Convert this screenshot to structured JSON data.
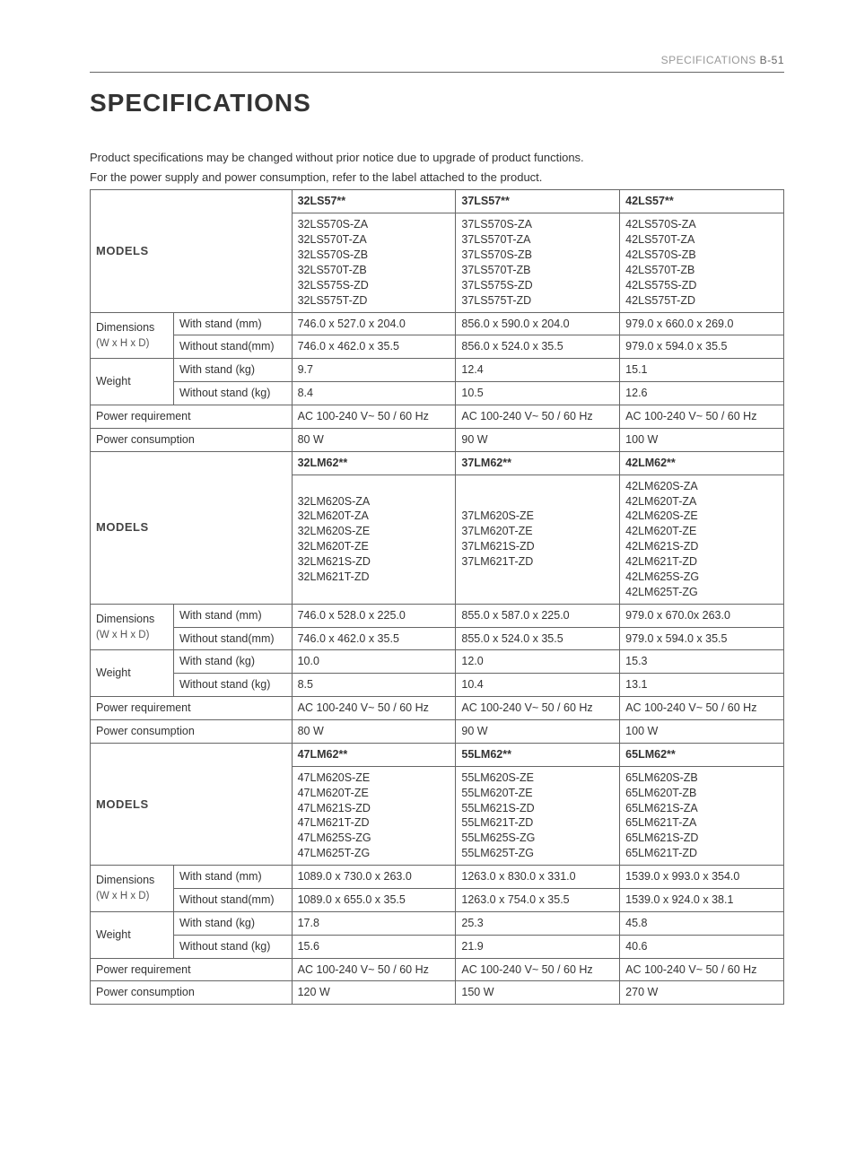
{
  "header": {
    "section": "SPECIFICATIONS",
    "page": "B-51"
  },
  "title": "SPECIFICATIONS",
  "intro": [
    "Product specifications may be changed without prior notice due to upgrade of product functions.",
    "For the power supply and power consumption, refer to the label attached to the product."
  ],
  "labels": {
    "models": "MODELS",
    "dimensions": "Dimensions",
    "dimSub": "(W x H x D)",
    "withStandMM": "With stand (mm)",
    "withoutStandMM": "Without stand(mm)",
    "weight": "Weight",
    "withStandKG": "With stand (kg)",
    "withoutStandKG": "Without stand (kg)",
    "powerReq": "Power requirement",
    "powerCons": "Power consumption"
  },
  "blocks": [
    {
      "headers": [
        "32LS57**",
        "37LS57**",
        "42LS57**"
      ],
      "modelLists": [
        [
          "32LS570S-ZA",
          "32LS570T-ZA",
          "32LS570S-ZB",
          "32LS570T-ZB",
          "32LS575S-ZD",
          "32LS575T-ZD"
        ],
        [
          "37LS570S-ZA",
          "37LS570T-ZA",
          "37LS570S-ZB",
          "37LS570T-ZB",
          "37LS575S-ZD",
          "37LS575T-ZD"
        ],
        [
          "42LS570S-ZA",
          "42LS570T-ZA",
          "42LS570S-ZB",
          "42LS570T-ZB",
          "42LS575S-ZD",
          "42LS575T-ZD"
        ]
      ],
      "dimStand": [
        "746.0 x 527.0 x 204.0",
        "856.0 x 590.0 x 204.0",
        "979.0 x 660.0 x 269.0"
      ],
      "dimNoStand": [
        "746.0 x 462.0 x 35.5",
        "856.0 x 524.0 x 35.5",
        "979.0 x 594.0 x 35.5"
      ],
      "wStand": [
        "9.7",
        "12.4",
        "15.1"
      ],
      "wNoStand": [
        "8.4",
        "10.5",
        "12.6"
      ],
      "powerReq": [
        "AC 100-240 V~ 50 / 60 Hz",
        "AC 100-240 V~ 50 / 60 Hz",
        "AC 100-240 V~ 50 / 60 Hz"
      ],
      "powerCons": [
        "80 W",
        "90 W",
        "100 W"
      ]
    },
    {
      "headers": [
        "32LM62**",
        "37LM62**",
        "42LM62**"
      ],
      "modelLists": [
        [
          "32LM620S-ZA",
          "32LM620T-ZA",
          "32LM620S-ZE",
          "32LM620T-ZE",
          "32LM621S-ZD",
          "32LM621T-ZD"
        ],
        [
          "37LM620S-ZE",
          "37LM620T-ZE",
          "37LM621S-ZD",
          "37LM621T-ZD"
        ],
        [
          "42LM620S-ZA",
          "42LM620T-ZA",
          "42LM620S-ZE",
          "42LM620T-ZE",
          "42LM621S-ZD",
          "42LM621T-ZD",
          "42LM625S-ZG",
          "42LM625T-ZG"
        ]
      ],
      "dimStand": [
        "746.0 x 528.0 x 225.0",
        "855.0 x 587.0 x 225.0",
        "979.0 x 670.0x 263.0"
      ],
      "dimNoStand": [
        "746.0 x 462.0 x 35.5",
        "855.0 x 524.0 x 35.5",
        "979.0 x 594.0 x 35.5"
      ],
      "wStand": [
        "10.0",
        "12.0",
        "15.3"
      ],
      "wNoStand": [
        "8.5",
        "10.4",
        "13.1"
      ],
      "powerReq": [
        "AC 100-240 V~ 50 / 60 Hz",
        "AC 100-240 V~ 50 / 60 Hz",
        "AC 100-240 V~ 50 / 60 Hz"
      ],
      "powerCons": [
        "80 W",
        "90 W",
        "100 W"
      ]
    },
    {
      "headers": [
        "47LM62**",
        "55LM62**",
        "65LM62**"
      ],
      "modelLists": [
        [
          "47LM620S-ZE",
          "47LM620T-ZE",
          "47LM621S-ZD",
          "47LM621T-ZD",
          "47LM625S-ZG",
          "47LM625T-ZG"
        ],
        [
          "55LM620S-ZE",
          "55LM620T-ZE",
          "55LM621S-ZD",
          "55LM621T-ZD",
          "55LM625S-ZG",
          "55LM625T-ZG"
        ],
        [
          "65LM620S-ZB",
          "65LM620T-ZB",
          "65LM621S-ZA",
          "65LM621T-ZA",
          "65LM621S-ZD",
          "65LM621T-ZD"
        ]
      ],
      "dimStand": [
        "1089.0 x 730.0 x 263.0",
        "1263.0 x 830.0 x 331.0",
        "1539.0 x 993.0 x 354.0"
      ],
      "dimNoStand": [
        "1089.0 x 655.0 x 35.5",
        "1263.0 x 754.0 x 35.5",
        "1539.0 x 924.0 x 38.1"
      ],
      "wStand": [
        "17.8",
        "25.3",
        "45.8"
      ],
      "wNoStand": [
        "15.6",
        "21.9",
        "40.6"
      ],
      "powerReq": [
        "AC 100-240 V~ 50 / 60 Hz",
        "AC 100-240 V~ 50 / 60 Hz",
        "AC 100-240 V~ 50 / 60 Hz"
      ],
      "powerCons": [
        "120 W",
        "150 W",
        "270 W"
      ]
    }
  ],
  "style": {
    "colwidths": [
      "12%",
      "17%",
      "23.6%",
      "23.6%",
      "23.6%"
    ]
  }
}
